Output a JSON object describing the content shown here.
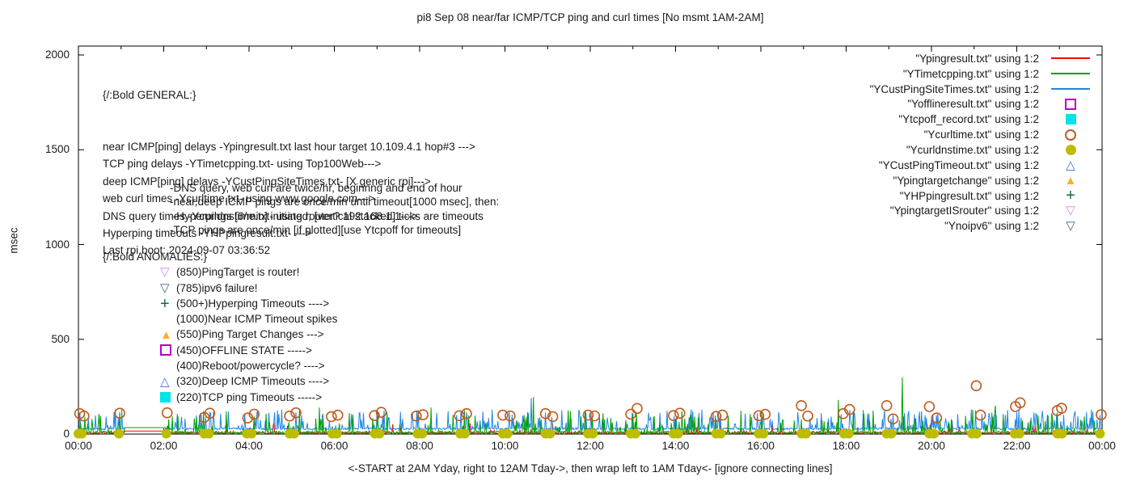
{
  "title": "pi8 Sep 08  near/far ICMP/TCP ping and curl times [No msmt 1AM-2AM]",
  "caption": "<-START at 2AM Yday, right to 12AM Tday->, then wrap left to 1AM Tday<- [ignore connecting lines]",
  "axes": {
    "ylabel": "msec",
    "ylim": [
      0,
      2000
    ],
    "yticks": [
      0,
      500,
      1000,
      1500,
      2000
    ],
    "xlim_hours": [
      0,
      24
    ],
    "xtick_labels": [
      "00:00",
      "02:00",
      "04:00",
      "06:00",
      "08:00",
      "10:00",
      "12:00",
      "14:00",
      "16:00",
      "18:00",
      "20:00",
      "22:00",
      "00:00"
    ],
    "grid": false
  },
  "annotations": {
    "general_header": "{/:Bold GENERAL:}",
    "general_lines": [
      "near ICMP[ping] delays -Ypingresult.txt last hour target 10.109.4.1 hop#3 --->",
      "TCP ping delays -YTimetcpping.txt- using Top100Web--->",
      "deep ICMP[ping] delays -YCustPingSiteTimes.txt- [X generic rpi]--->",
      "web curl times -Ycurltime.txt- using www.google.com--->",
      "DNS query times -Ycurldnstime.txt- using router? 192.168.1.1--->",
      "Hyperping timeouts -YHPpingresult.txt- --->",
      "Last rpi boot: 2024-09-07 03:36:52"
    ],
    "general_sublines": [
      "-DNS query, web curl are twice/hr, beginnng and end of hour",
      "-near,deep ICMP pings are once/min until timeout[1000 msec], then:",
      " -Hyperpings [6/min] initiated; [vertical stacked] ticks are timeouts",
      "-TCP pings are once/min [if plotted][use Ytcpoff for timeouts]"
    ],
    "anomalies_header": "{/:Bold ANOMALIES:}",
    "anomalies": [
      {
        "marker": "tri-down-open",
        "color": "#c78fee",
        "label": "(850)PingTarget is router!"
      },
      {
        "marker": "tri-down-open",
        "color": "#3f6678",
        "label": "(785)ipv6 failure!"
      },
      {
        "marker": "plus",
        "color": "#15694a",
        "label": "(500+)Hyperping Timeouts ---->"
      },
      {
        "marker": "none",
        "color": "#1a1a1a",
        "label": "(1000)Near ICMP Timeout spikes"
      },
      {
        "marker": "tri-up-filled",
        "color": "#fbad29",
        "label": "(550)Ping Target Changes --->"
      },
      {
        "marker": "square-open",
        "color": "#bf00bf",
        "label": "(450)OFFLINE STATE ----->"
      },
      {
        "marker": "none",
        "color": "#1a1a1a",
        "label": "(400)Reboot/powercycle? ---->"
      },
      {
        "marker": "tri-up-open",
        "color": "#4169e1",
        "label": "(320)Deep ICMP Timeouts ---->"
      },
      {
        "marker": "square-filled",
        "color": "#00e5e5",
        "label": "(220)TCP ping Timeouts ----->"
      }
    ]
  },
  "legend": [
    {
      "label": "\"Ypingresult.txt\" using 1:2",
      "marker": "line",
      "color": "#ff0000"
    },
    {
      "label": "\"YTimetcpping.txt\" using 1:2",
      "marker": "line",
      "color": "#00a000"
    },
    {
      "label": "\"YCustPingSiteTimes.txt\" using 1:2",
      "marker": "line",
      "color": "#1e86e8"
    },
    {
      "label": "\"Yofflineresult.txt\" using 1:2",
      "marker": "square-open",
      "color": "#bf00bf"
    },
    {
      "label": "\"Ytcpoff_record.txt\" using 1:2",
      "marker": "square-filled",
      "color": "#00e5e5"
    },
    {
      "label": "\"Ycurltime.txt\" using 1:2",
      "marker": "circle-open",
      "color": "#bf5b1d"
    },
    {
      "label": "\"Ycurldnstime.txt\" using 1:2",
      "marker": "circle-filled",
      "color": "#bdbd00"
    },
    {
      "label": "\"YCustPingTimeout.txt\" using 1:2",
      "marker": "tri-up-open",
      "color": "#4169e1"
    },
    {
      "label": "\"Ypingtargetchange\" using 1:2",
      "marker": "tri-up-filled",
      "color": "#fbad29"
    },
    {
      "label": "\"YHPpingresult.txt\" using 1:2",
      "marker": "plus",
      "color": "#15694a"
    },
    {
      "label": "\"YpingtargetISrouter\" using 1:2",
      "marker": "tri-down-open",
      "color": "#c78fee"
    },
    {
      "label": "\"Ynoipv6\" using 1:2",
      "marker": "tri-down-open",
      "color": "#3f6678"
    }
  ],
  "chart_data": {
    "type": "line",
    "x_unit": "time of day, hours 0-24 (wrapped: starts 2AM yesterday)",
    "ylabel": "msec",
    "ylim": [
      0,
      2000
    ],
    "no_measurement_gap_hours": [
      1.08,
      2.05
    ],
    "line_series": [
      {
        "name": "Ypingresult (near ICMP ping)",
        "color": "#ff0000",
        "baseline_msec": 6,
        "jitter_msec": 4,
        "spike_prob": 0.04,
        "spike_range_msec": [
          15,
          60
        ],
        "gap_value_msec": 16,
        "seed": 7,
        "extra_spikes": []
      },
      {
        "name": "YCustPingSiteTimes (deep ICMP ping)",
        "color": "#1e86e8",
        "baseline_msec": 28,
        "jitter_msec": 5,
        "spike_prob": 0.22,
        "spike_range_msec": [
          40,
          130
        ],
        "gap_value_msec": 34,
        "seed": 99,
        "extra_spikes": [
          [
            10.62,
            190
          ]
        ]
      },
      {
        "name": "YTimetcpping (TCP ping)",
        "color": "#00a000",
        "baseline_msec": 9,
        "jitter_msec": 7,
        "spike_prob": 0.14,
        "spike_range_msec": [
          20,
          130
        ],
        "gap_value_msec": 34,
        "seed": 13,
        "extra_spikes": [
          [
            5.65,
            140
          ],
          [
            8.27,
            140
          ],
          [
            10.66,
            195
          ],
          [
            17.82,
            180
          ],
          [
            19.32,
            300
          ],
          [
            21.5,
            150
          ]
        ]
      }
    ],
    "point_series": [
      {
        "name": "Ycurltime (web curl, twice/hr)",
        "marker": "circle-open",
        "color": "#bf5b1d",
        "data": [
          [
            0.03,
            108
          ],
          [
            0.13,
            95
          ],
          [
            0.97,
            110
          ],
          [
            2.08,
            112
          ],
          [
            2.95,
            88
          ],
          [
            3.08,
            110
          ],
          [
            3.97,
            85
          ],
          [
            4.12,
            105
          ],
          [
            4.95,
            95
          ],
          [
            5.1,
            112
          ],
          [
            5.93,
            92
          ],
          [
            6.08,
            100
          ],
          [
            6.94,
            98
          ],
          [
            7.1,
            115
          ],
          [
            7.92,
            95
          ],
          [
            8.08,
            102
          ],
          [
            8.93,
            97
          ],
          [
            9.1,
            108
          ],
          [
            9.95,
            100
          ],
          [
            10.12,
            96
          ],
          [
            10.95,
            108
          ],
          [
            11.12,
            92
          ],
          [
            11.95,
            100
          ],
          [
            12.1,
            96
          ],
          [
            12.95,
            105
          ],
          [
            13.1,
            135
          ],
          [
            13.95,
            98
          ],
          [
            14.1,
            110
          ],
          [
            14.95,
            93
          ],
          [
            15.1,
            100
          ],
          [
            15.95,
            97
          ],
          [
            16.1,
            104
          ],
          [
            16.95,
            150
          ],
          [
            17.1,
            95
          ],
          [
            17.93,
            108
          ],
          [
            18.08,
            130
          ],
          [
            18.95,
            150
          ],
          [
            19.1,
            80
          ],
          [
            19.95,
            145
          ],
          [
            20.12,
            85
          ],
          [
            21.05,
            255
          ],
          [
            21.15,
            100
          ],
          [
            21.97,
            145
          ],
          [
            22.08,
            165
          ],
          [
            22.95,
            124
          ],
          [
            23.05,
            136
          ],
          [
            23.98,
            102
          ]
        ]
      },
      {
        "name": "Ycurldnstime (DNS query, twice/hr)",
        "marker": "circle-filled",
        "color": "#bdbd00",
        "data": [
          [
            0.0,
            2
          ],
          [
            0.08,
            2
          ],
          [
            0.95,
            2
          ],
          [
            2.06,
            2
          ],
          [
            2.95,
            2
          ],
          [
            3.06,
            2
          ],
          [
            3.95,
            2
          ],
          [
            4.06,
            2
          ],
          [
            4.95,
            2
          ],
          [
            5.06,
            2
          ],
          [
            5.95,
            2
          ],
          [
            6.06,
            2
          ],
          [
            6.95,
            2
          ],
          [
            7.06,
            2
          ],
          [
            7.95,
            2
          ],
          [
            8.06,
            2
          ],
          [
            8.95,
            2
          ],
          [
            9.06,
            2
          ],
          [
            9.95,
            2
          ],
          [
            10.06,
            2
          ],
          [
            10.95,
            2
          ],
          [
            11.06,
            2
          ],
          [
            11.95,
            2
          ],
          [
            12.06,
            2
          ],
          [
            12.95,
            2
          ],
          [
            13.06,
            2
          ],
          [
            13.95,
            2
          ],
          [
            14.06,
            2
          ],
          [
            14.95,
            2
          ],
          [
            15.06,
            2
          ],
          [
            15.95,
            2
          ],
          [
            16.06,
            2
          ],
          [
            16.95,
            2
          ],
          [
            17.06,
            2
          ],
          [
            17.95,
            2
          ],
          [
            18.06,
            2
          ],
          [
            18.95,
            2
          ],
          [
            19.06,
            2
          ],
          [
            19.95,
            2
          ],
          [
            20.06,
            2
          ],
          [
            20.95,
            2
          ],
          [
            21.06,
            2
          ],
          [
            21.95,
            2
          ],
          [
            22.06,
            2
          ],
          [
            22.95,
            2
          ],
          [
            23.06,
            2
          ],
          [
            23.95,
            2
          ]
        ]
      },
      {
        "name": "Yofflineresult",
        "marker": "square-open",
        "color": "#bf00bf",
        "data": []
      },
      {
        "name": "Ytcpoff_record",
        "marker": "square-filled",
        "color": "#00e5e5",
        "data": []
      },
      {
        "name": "YCustPingTimeout",
        "marker": "tri-up-open",
        "color": "#4169e1",
        "data": []
      },
      {
        "name": "Ypingtargetchange",
        "marker": "tri-up-filled",
        "color": "#fbad29",
        "data": []
      },
      {
        "name": "YHPpingresult",
        "marker": "plus",
        "color": "#15694a",
        "data": []
      },
      {
        "name": "YpingtargetISrouter",
        "marker": "tri-down-open",
        "color": "#c78fee",
        "data": []
      },
      {
        "name": "Ynoipv6",
        "marker": "tri-down-open",
        "color": "#3f6678",
        "data": []
      }
    ]
  }
}
